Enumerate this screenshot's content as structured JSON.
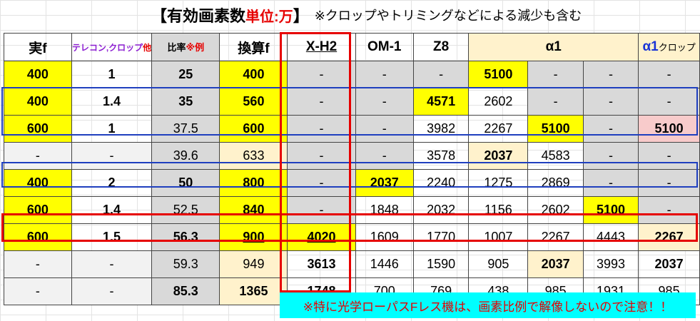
{
  "title": {
    "main": "【有効画素数",
    "unit": "単位:万",
    "close": "】",
    "note": "※クロップやトリミングなどによる減少も含む"
  },
  "headers": {
    "real_f": "実f",
    "converter_a": "テレコン,クロップ",
    "converter_b": "他",
    "ratio_a": "比率",
    "ratio_b": "※例",
    "equiv_f": "換算f",
    "xh2": "X-H2",
    "om1": "OM-1",
    "z8": "Z8",
    "a1": "α1",
    "a1crop_a": "α1",
    "a1crop_b": "クロップ"
  },
  "rows": [
    [
      "400",
      "1",
      "25",
      "400",
      "-",
      "-",
      "-",
      "5100",
      "-",
      "-",
      "-"
    ],
    [
      "400",
      "1.4",
      "35",
      "560",
      "-",
      "-",
      "4571",
      "2602",
      "-",
      "-",
      "-"
    ],
    [
      "600",
      "1",
      "37.5",
      "600",
      "-",
      "-",
      "3982",
      "2267",
      "5100",
      "-",
      "5100"
    ],
    [
      "-",
      "-",
      "39.6",
      "633",
      "-",
      "-",
      "3578",
      "2037",
      "4583",
      "-",
      "-"
    ],
    [
      "400",
      "2",
      "50",
      "800",
      "-",
      "2037",
      "2240",
      "1275",
      "2869",
      "-",
      "-"
    ],
    [
      "600",
      "1.4",
      "52.5",
      "840",
      "-",
      "1848",
      "2032",
      "1156",
      "2602",
      "5100",
      "-"
    ],
    [
      "600",
      "1.5",
      "56.3",
      "900",
      "4020",
      "1609",
      "1770",
      "1007",
      "2267",
      "4443",
      "2267"
    ],
    [
      "-",
      "-",
      "59.3",
      "949",
      "3613",
      "1446",
      "1590",
      "905",
      "2037",
      "3993",
      "2037"
    ],
    [
      "-",
      "-",
      "85.3",
      "1365",
      "1748",
      "700",
      "769",
      "438",
      "985",
      "1931",
      "985"
    ]
  ],
  "footnote": "※特に光学ローパスFレス機は、画素比例で解像しないので注意！！",
  "colors": {
    "red": "#e60000",
    "purple": "#8c1ed2",
    "blue": "#1a33d6",
    "yellow": "#ffff00",
    "gray": "#d9d9d9",
    "cream": "#fff2cc",
    "pink": "#f8cbcb",
    "cyan": "#00ffff"
  }
}
